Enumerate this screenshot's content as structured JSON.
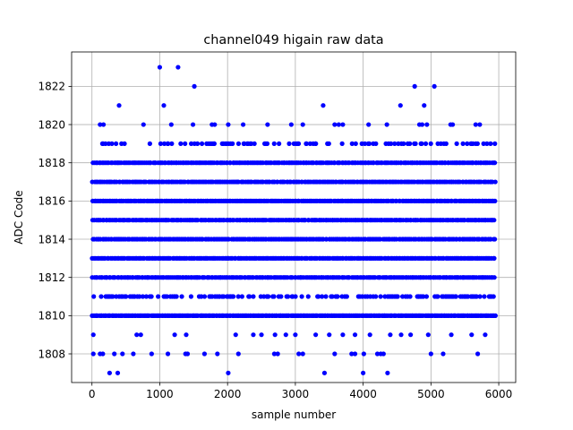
{
  "chart_data": {
    "type": "scatter",
    "title": "channel049 higain raw data",
    "xlabel": "sample number",
    "ylabel": "ADC Code",
    "xlim": [
      -300,
      6250
    ],
    "ylim": [
      1806.5,
      1823.8
    ],
    "xticks": [
      0,
      1000,
      2000,
      3000,
      4000,
      5000,
      6000
    ],
    "yticks": [
      1808,
      1810,
      1812,
      1814,
      1816,
      1818,
      1820,
      1822
    ],
    "grid": true,
    "marker_color": "#0000ff",
    "n_samples": 5950,
    "dense_levels": [
      1810,
      1812,
      1813,
      1814,
      1815,
      1816,
      1817,
      1818
    ],
    "sparse_points": [
      {
        "x": 1000,
        "y": 1823
      },
      {
        "x": 1270,
        "y": 1823
      },
      {
        "x": 1510,
        "y": 1822
      },
      {
        "x": 4760,
        "y": 1822
      },
      {
        "x": 5050,
        "y": 1822
      },
      {
        "x": 400,
        "y": 1821
      },
      {
        "x": 1060,
        "y": 1821
      },
      {
        "x": 3410,
        "y": 1821
      },
      {
        "x": 4550,
        "y": 1821
      },
      {
        "x": 4900,
        "y": 1821
      },
      {
        "x": 120,
        "y": 1820
      },
      {
        "x": 170,
        "y": 1820
      },
      {
        "x": 760,
        "y": 1820
      },
      {
        "x": 1170,
        "y": 1820
      },
      {
        "x": 1490,
        "y": 1820
      },
      {
        "x": 1770,
        "y": 1820
      },
      {
        "x": 1810,
        "y": 1820
      },
      {
        "x": 2010,
        "y": 1820
      },
      {
        "x": 2230,
        "y": 1820
      },
      {
        "x": 2590,
        "y": 1820
      },
      {
        "x": 2940,
        "y": 1820
      },
      {
        "x": 3110,
        "y": 1820
      },
      {
        "x": 3580,
        "y": 1820
      },
      {
        "x": 3640,
        "y": 1820
      },
      {
        "x": 3700,
        "y": 1820
      },
      {
        "x": 4080,
        "y": 1820
      },
      {
        "x": 4350,
        "y": 1820
      },
      {
        "x": 4830,
        "y": 1820
      },
      {
        "x": 4870,
        "y": 1820
      },
      {
        "x": 4940,
        "y": 1820
      },
      {
        "x": 5290,
        "y": 1820
      },
      {
        "x": 5320,
        "y": 1820
      },
      {
        "x": 5660,
        "y": 1820
      },
      {
        "x": 5720,
        "y": 1820
      },
      {
        "x": 20,
        "y": 1809
      },
      {
        "x": 660,
        "y": 1809
      },
      {
        "x": 720,
        "y": 1809
      },
      {
        "x": 1220,
        "y": 1809
      },
      {
        "x": 1390,
        "y": 1809
      },
      {
        "x": 2120,
        "y": 1809
      },
      {
        "x": 2380,
        "y": 1809
      },
      {
        "x": 2500,
        "y": 1809
      },
      {
        "x": 2700,
        "y": 1809
      },
      {
        "x": 2860,
        "y": 1809
      },
      {
        "x": 3000,
        "y": 1809
      },
      {
        "x": 3300,
        "y": 1809
      },
      {
        "x": 3500,
        "y": 1809
      },
      {
        "x": 3700,
        "y": 1809
      },
      {
        "x": 3880,
        "y": 1809
      },
      {
        "x": 4100,
        "y": 1809
      },
      {
        "x": 4400,
        "y": 1809
      },
      {
        "x": 4560,
        "y": 1809
      },
      {
        "x": 4700,
        "y": 1809
      },
      {
        "x": 4960,
        "y": 1809
      },
      {
        "x": 5300,
        "y": 1809
      },
      {
        "x": 5600,
        "y": 1809
      },
      {
        "x": 5800,
        "y": 1809
      },
      {
        "x": 20,
        "y": 1808
      },
      {
        "x": 120,
        "y": 1808
      },
      {
        "x": 160,
        "y": 1808
      },
      {
        "x": 330,
        "y": 1808
      },
      {
        "x": 450,
        "y": 1808
      },
      {
        "x": 610,
        "y": 1808
      },
      {
        "x": 880,
        "y": 1808
      },
      {
        "x": 1120,
        "y": 1808
      },
      {
        "x": 1380,
        "y": 1808
      },
      {
        "x": 1410,
        "y": 1808
      },
      {
        "x": 1660,
        "y": 1808
      },
      {
        "x": 1850,
        "y": 1808
      },
      {
        "x": 2160,
        "y": 1808
      },
      {
        "x": 2690,
        "y": 1808
      },
      {
        "x": 2740,
        "y": 1808
      },
      {
        "x": 3050,
        "y": 1808
      },
      {
        "x": 3110,
        "y": 1808
      },
      {
        "x": 3580,
        "y": 1808
      },
      {
        "x": 3830,
        "y": 1808
      },
      {
        "x": 3880,
        "y": 1808
      },
      {
        "x": 4010,
        "y": 1808
      },
      {
        "x": 4210,
        "y": 1808
      },
      {
        "x": 4260,
        "y": 1808
      },
      {
        "x": 4300,
        "y": 1808
      },
      {
        "x": 5000,
        "y": 1808
      },
      {
        "x": 5180,
        "y": 1808
      },
      {
        "x": 5690,
        "y": 1808
      },
      {
        "x": 260,
        "y": 1807
      },
      {
        "x": 380,
        "y": 1807
      },
      {
        "x": 2010,
        "y": 1807
      },
      {
        "x": 3430,
        "y": 1807
      },
      {
        "x": 4000,
        "y": 1807
      },
      {
        "x": 4360,
        "y": 1807
      }
    ]
  }
}
